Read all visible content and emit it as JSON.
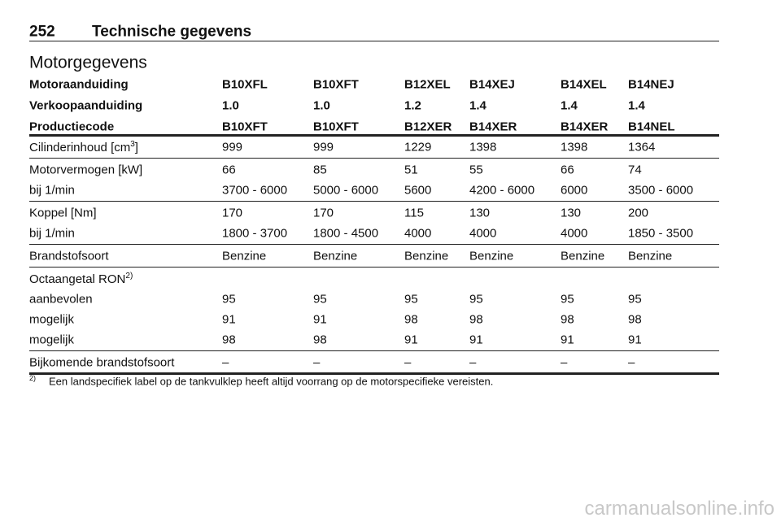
{
  "header": {
    "page_number": "252",
    "title": "Technische gegevens"
  },
  "section": "Motorgegevens",
  "table": {
    "header_rows": [
      [
        "Motoraanduiding",
        "B10XFL",
        "B10XFT",
        "B12XEL",
        "B14XEJ",
        "B14XEL",
        "B14NEJ"
      ],
      [
        "Verkoopaanduiding",
        "1.0",
        "1.0",
        "1.2",
        "1.4",
        "1.4",
        "1.4"
      ],
      [
        "Productiecode",
        "B10XFT",
        "B10XFT",
        "B12XER",
        "B14XER",
        "B14XER",
        "B14NEL"
      ]
    ],
    "groups": [
      [
        [
          {
            "text": "Cilinderinhoud [cm",
            "sup": "3",
            "after": "]"
          },
          "999",
          "999",
          "1229",
          "1398",
          "1398",
          "1364"
        ]
      ],
      [
        [
          "Motorvermogen [kW]",
          "66",
          "85",
          "51",
          "55",
          "66",
          "74"
        ],
        [
          "bij 1/min",
          "3700 - 6000",
          "5000 - 6000",
          "5600",
          "4200 - 6000",
          "6000",
          "3500 - 6000"
        ]
      ],
      [
        [
          "Koppel [Nm]",
          "170",
          "170",
          "115",
          "130",
          "130",
          "200"
        ],
        [
          "bij 1/min",
          "1800 - 3700",
          "1800 - 4500",
          "4000",
          "4000",
          "4000",
          "1850 - 3500"
        ]
      ],
      [
        [
          "Brandstofsoort",
          "Benzine",
          "Benzine",
          "Benzine",
          "Benzine",
          "Benzine",
          "Benzine"
        ]
      ],
      [
        [
          {
            "text": "Octaangetal RON",
            "sup": "2)"
          }
        ],
        [
          "aanbevolen",
          "95",
          "95",
          "95",
          "95",
          "95",
          "95"
        ],
        [
          "mogelijk",
          "91",
          "91",
          "98",
          "98",
          "98",
          "98"
        ],
        [
          "mogelijk",
          "98",
          "98",
          "91",
          "91",
          "91",
          "91"
        ]
      ],
      [
        [
          "Bijkomende brandstofsoort",
          "–",
          "–",
          "–",
          "–",
          "–",
          "–"
        ]
      ]
    ]
  },
  "footnote": {
    "mark": "2)",
    "text": "Een landspecifiek label op de tankvulklep heeft altijd voorrang op de motorspecifieke vereisten."
  },
  "watermark": "carmanualsonline.info"
}
